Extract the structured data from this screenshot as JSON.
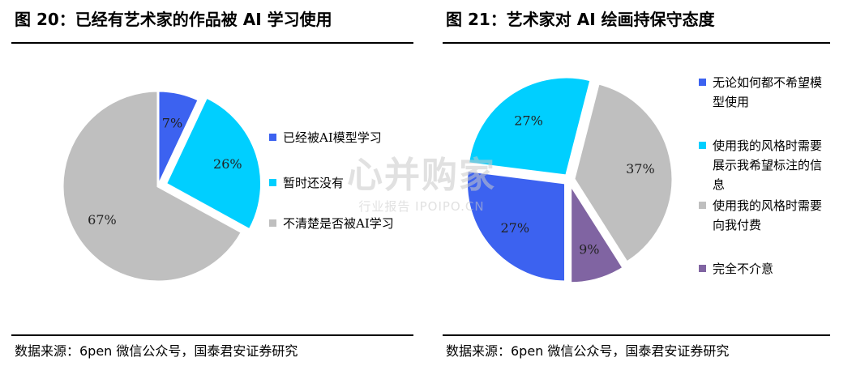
{
  "charts": {
    "left": {
      "title": "图 20：已经有艺术家的作品被 AI 学习使用",
      "source": "数据来源：6pen 微信公众号，国泰君安证券研究"
    },
    "right": {
      "title": "图 21：艺术家对 AI 绘画持保守态度",
      "source": "数据来源：6pen 微信公众号，国泰君安证券研究"
    }
  },
  "watermark": {
    "main": "心并购家",
    "sub": "行业报告 IPOIPO.CN"
  },
  "chart_data": [
    {
      "type": "pie",
      "title": "图 20：已经有艺术家的作品被 AI 学习使用",
      "categories": [
        "已经被AI模型学习",
        "暂时还没有",
        "不清楚是否被AI学习"
      ],
      "values": [
        7,
        26,
        67
      ],
      "labels": [
        "7%",
        "26%",
        "67%"
      ],
      "colors": [
        "#3c62f0",
        "#00cfff",
        "#bfbfbf"
      ],
      "legend": "right"
    },
    {
      "type": "pie",
      "title": "图 21：艺术家对 AI 绘画持保守态度",
      "categories": [
        "无论如何都不希望模型使用",
        "使用我的风格时需要展示我希望标注的信息",
        "使用我的风格时需要向我付费",
        "完全不介意"
      ],
      "values": [
        27,
        27,
        37,
        9
      ],
      "labels": [
        "27%",
        "27%",
        "37%",
        "9%"
      ],
      "colors": [
        "#3c62f0",
        "#00cfff",
        "#bfbfbf",
        "#8064a2"
      ],
      "legend": "right"
    }
  ]
}
